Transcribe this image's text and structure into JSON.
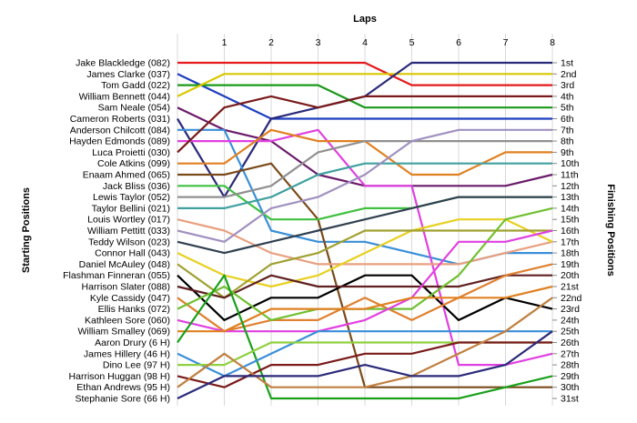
{
  "chart_data": {
    "type": "line",
    "title": "",
    "xlabel": "Laps",
    "ylabel_left": "Starting Positions",
    "ylabel_right": "Finishing Positions",
    "x": [
      0,
      1,
      2,
      3,
      4,
      5,
      6,
      7,
      8
    ],
    "x_tick_labels": [
      "1",
      "2",
      "3",
      "4",
      "5",
      "6",
      "7",
      "8"
    ],
    "y_reversed": true,
    "ylim": [
      1,
      31
    ],
    "grid": "vertical",
    "finishing_labels": [
      "1st",
      "2nd",
      "3rd",
      "4th",
      "5th",
      "6th",
      "7th",
      "8th",
      "9th",
      "10th",
      "11th",
      "12th",
      "13th",
      "14th",
      "15th",
      "16th",
      "17th",
      "18th",
      "19th",
      "20th",
      "21st",
      "22nd",
      "23rd",
      "24th",
      "25th",
      "26th",
      "27th",
      "28th",
      "29th",
      "30th",
      "31st"
    ],
    "series": [
      {
        "name": "Jake Blackledge (082)",
        "color": "#e41a1c",
        "values": [
          1,
          1,
          1,
          1,
          1,
          3,
          3,
          3,
          3
        ]
      },
      {
        "name": "James Clarke (037)",
        "color": "#1f3fbf",
        "values": [
          2,
          4,
          6,
          6,
          6,
          6,
          6,
          6,
          6
        ]
      },
      {
        "name": "Tom Gadd (022)",
        "color": "#1a9a1a",
        "values": [
          3,
          3,
          3,
          3,
          5,
          5,
          5,
          5,
          5
        ]
      },
      {
        "name": "William Bennett (044)",
        "color": "#d9c800",
        "values": [
          4,
          2,
          2,
          2,
          2,
          2,
          2,
          2,
          2
        ]
      },
      {
        "name": "Sam Neale (054)",
        "color": "#6a1b6a",
        "values": [
          5,
          7,
          8,
          11,
          12,
          12,
          12,
          12,
          11
        ]
      },
      {
        "name": "Cameron Roberts (031)",
        "color": "#2a2a7a",
        "values": [
          6,
          13,
          6,
          5,
          4,
          1,
          1,
          1,
          1
        ]
      },
      {
        "name": "Anderson Chilcott (084)",
        "color": "#3a8fd8",
        "values": [
          7,
          7,
          16,
          17,
          17,
          18,
          19,
          18,
          18
        ]
      },
      {
        "name": "Hayden Edmonds (089)",
        "color": "#e040e0",
        "values": [
          8,
          8,
          8,
          7,
          12,
          12,
          28,
          28,
          27
        ]
      },
      {
        "name": "Luca Proietti (030)",
        "color": "#7a1a1a",
        "values": [
          9,
          5,
          4,
          5,
          4,
          4,
          4,
          4,
          4
        ]
      },
      {
        "name": "Cole Atkins (099)",
        "color": "#e08020",
        "values": [
          10,
          10,
          7,
          8,
          8,
          11,
          11,
          9,
          9
        ]
      },
      {
        "name": "Enaam Ahmed (065)",
        "color": "#7a4a1a",
        "values": [
          11,
          11,
          10,
          15,
          30,
          30,
          30,
          30,
          30
        ]
      },
      {
        "name": "Jack Bliss (036)",
        "color": "#40c040",
        "values": [
          12,
          12,
          15,
          15,
          14,
          14,
          13,
          13,
          13
        ]
      },
      {
        "name": "Lewis Taylor (052)",
        "color": "#909090",
        "values": [
          13,
          13,
          12,
          9,
          8,
          8,
          8,
          8,
          8
        ]
      },
      {
        "name": "Taylor Bellini (021)",
        "color": "#40a0a0",
        "values": [
          14,
          14,
          13,
          11,
          10,
          10,
          10,
          10,
          10
        ]
      },
      {
        "name": "Louis Wortley (017)",
        "color": "#e8a080",
        "values": [
          15,
          16,
          18,
          19,
          19,
          19,
          19,
          18,
          17
        ]
      },
      {
        "name": "William Pettitt (033)",
        "color": "#a090c0",
        "values": [
          16,
          17,
          14,
          13,
          11,
          8,
          7,
          7,
          7
        ]
      },
      {
        "name": "Teddy Wilson (023)",
        "color": "#304050",
        "values": [
          17,
          18,
          17,
          16,
          15,
          14,
          13,
          13,
          13
        ]
      },
      {
        "name": "Connor Hall (043)",
        "color": "#e8d020",
        "values": [
          18,
          20,
          21,
          20,
          18,
          16,
          15,
          15,
          17
        ]
      },
      {
        "name": "Daniel McAuley (048)",
        "color": "#a0a030",
        "values": [
          19,
          22,
          19,
          18,
          16,
          16,
          16,
          16,
          16
        ]
      },
      {
        "name": "Flashman Finneran (055)",
        "color": "#000000",
        "values": [
          20,
          24,
          22,
          22,
          20,
          20,
          24,
          22,
          23
        ]
      },
      {
        "name": "Harrison Slater (088)",
        "color": "#602020",
        "values": [
          21,
          22,
          20,
          21,
          21,
          21,
          21,
          20,
          20
        ]
      },
      {
        "name": "Kyle Cassidy (047)",
        "color": "#e08030",
        "values": [
          22,
          25,
          24,
          24,
          22,
          24,
          22,
          20,
          19
        ]
      },
      {
        "name": "Ellis Hanks (072)",
        "color": "#70c030",
        "values": [
          23,
          21,
          24,
          23,
          23,
          23,
          20,
          15,
          14
        ]
      },
      {
        "name": "Kathleen Sore (060)",
        "color": "#e040e0",
        "values": [
          24,
          25,
          25,
          25,
          24,
          22,
          17,
          17,
          16
        ]
      },
      {
        "name": "William Smalley (069)",
        "color": "#e08020",
        "values": [
          25,
          25,
          23,
          23,
          23,
          22,
          22,
          22,
          21
        ]
      },
      {
        "name": "Aaron Drury (6 H)",
        "color": "#1aa01a",
        "values": [
          26,
          20,
          31,
          31,
          31,
          31,
          31,
          30,
          29
        ]
      },
      {
        "name": "James Hillery (46 H)",
        "color": "#3a8fd8",
        "values": [
          27,
          29,
          27,
          25,
          25,
          25,
          25,
          25,
          25
        ]
      },
      {
        "name": "Dino Lee (97 H)",
        "color": "#90d040",
        "values": [
          28,
          28,
          26,
          26,
          26,
          26,
          26,
          26,
          26
        ]
      },
      {
        "name": "Harrison Huggan (98 H)",
        "color": "#7a1a1a",
        "values": [
          29,
          30,
          28,
          28,
          27,
          27,
          26,
          26,
          26
        ]
      },
      {
        "name": "Ethan Andrews (95 H)",
        "color": "#c08040",
        "values": [
          30,
          27,
          30,
          30,
          30,
          29,
          27,
          25,
          22
        ]
      },
      {
        "name": "Stephanie Sore (66 H)",
        "color": "#2a2a7a",
        "values": [
          31,
          29,
          29,
          29,
          28,
          29,
          29,
          28,
          25
        ]
      }
    ]
  }
}
